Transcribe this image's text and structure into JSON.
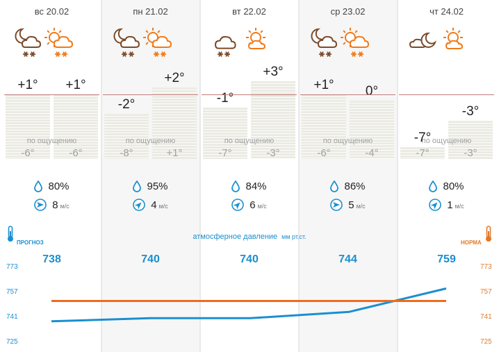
{
  "days": [
    {
      "date": "вс 20.02",
      "icons": [
        "night-cloud-snow-icon",
        "day-cloud-snow-icon"
      ],
      "temps": [
        "+1°",
        "+1°"
      ],
      "feels": [
        "-6°",
        "-6°"
      ],
      "humidity": "80%",
      "wind_speed": "8",
      "pressure": "738",
      "wind_dir": "east"
    },
    {
      "date": "пн 21.02",
      "icons": [
        "night-cloud-snow-icon",
        "day-cloud-snow-icon"
      ],
      "temps": [
        "-2°",
        "+2°"
      ],
      "feels": [
        "-8°",
        "+1°"
      ],
      "humidity": "95%",
      "wind_speed": "4",
      "pressure": "740",
      "wind_dir": "northeast"
    },
    {
      "date": "вт 22.02",
      "icons": [
        "cloud-snow-icon",
        "sun-cloud-icon"
      ],
      "temps": [
        "-1°",
        "+3°"
      ],
      "feels": [
        "-7°",
        "-3°"
      ],
      "humidity": "84%",
      "wind_speed": "6",
      "pressure": "740",
      "wind_dir": "northeast"
    },
    {
      "date": "ср 23.02",
      "icons": [
        "night-cloud-snow-icon",
        "day-cloud-snow-icon"
      ],
      "temps": [
        "+1°",
        "0°"
      ],
      "feels": [
        "-6°",
        "-4°"
      ],
      "humidity": "86%",
      "wind_speed": "5",
      "pressure": "744",
      "wind_dir": "east"
    },
    {
      "date": "чт 24.02",
      "icons": [
        "night-cloud-icon",
        "sun-cloud-icon"
      ],
      "temps": [
        "-7°",
        "-3°"
      ],
      "feels": [
        "-7°",
        "-3°"
      ],
      "humidity": "80%",
      "wind_speed": "1",
      "pressure": "759",
      "wind_dir": "northeast"
    }
  ],
  "labels": {
    "feels_like": "по ощущению",
    "wind_unit": "м/с",
    "pressure_title": "атмосферное давление",
    "pressure_unit": "мм рт.ст.",
    "forecast": "ПРОГНОЗ",
    "norm": "НОРМА"
  },
  "axis_ticks": [
    "773",
    "757",
    "741",
    "725"
  ],
  "colors": {
    "forecast": "#1a8fd0",
    "norm": "#ef6a1f",
    "night_icon": "#7a4a2a",
    "day_icon": "#f07a1a"
  },
  "chart_data": {
    "type": "line",
    "title": "атмосферное давление",
    "ylabel": "мм рт.ст.",
    "categories": [
      "вс 20.02",
      "пн 21.02",
      "вт 22.02",
      "ср 23.02",
      "чт 24.02"
    ],
    "ylim": [
      725,
      773
    ],
    "series": [
      {
        "name": "ПРОГНОЗ",
        "values": [
          738,
          740,
          740,
          744,
          759
        ]
      },
      {
        "name": "НОРМА",
        "values": [
          751,
          751,
          751,
          751,
          751
        ]
      }
    ]
  }
}
